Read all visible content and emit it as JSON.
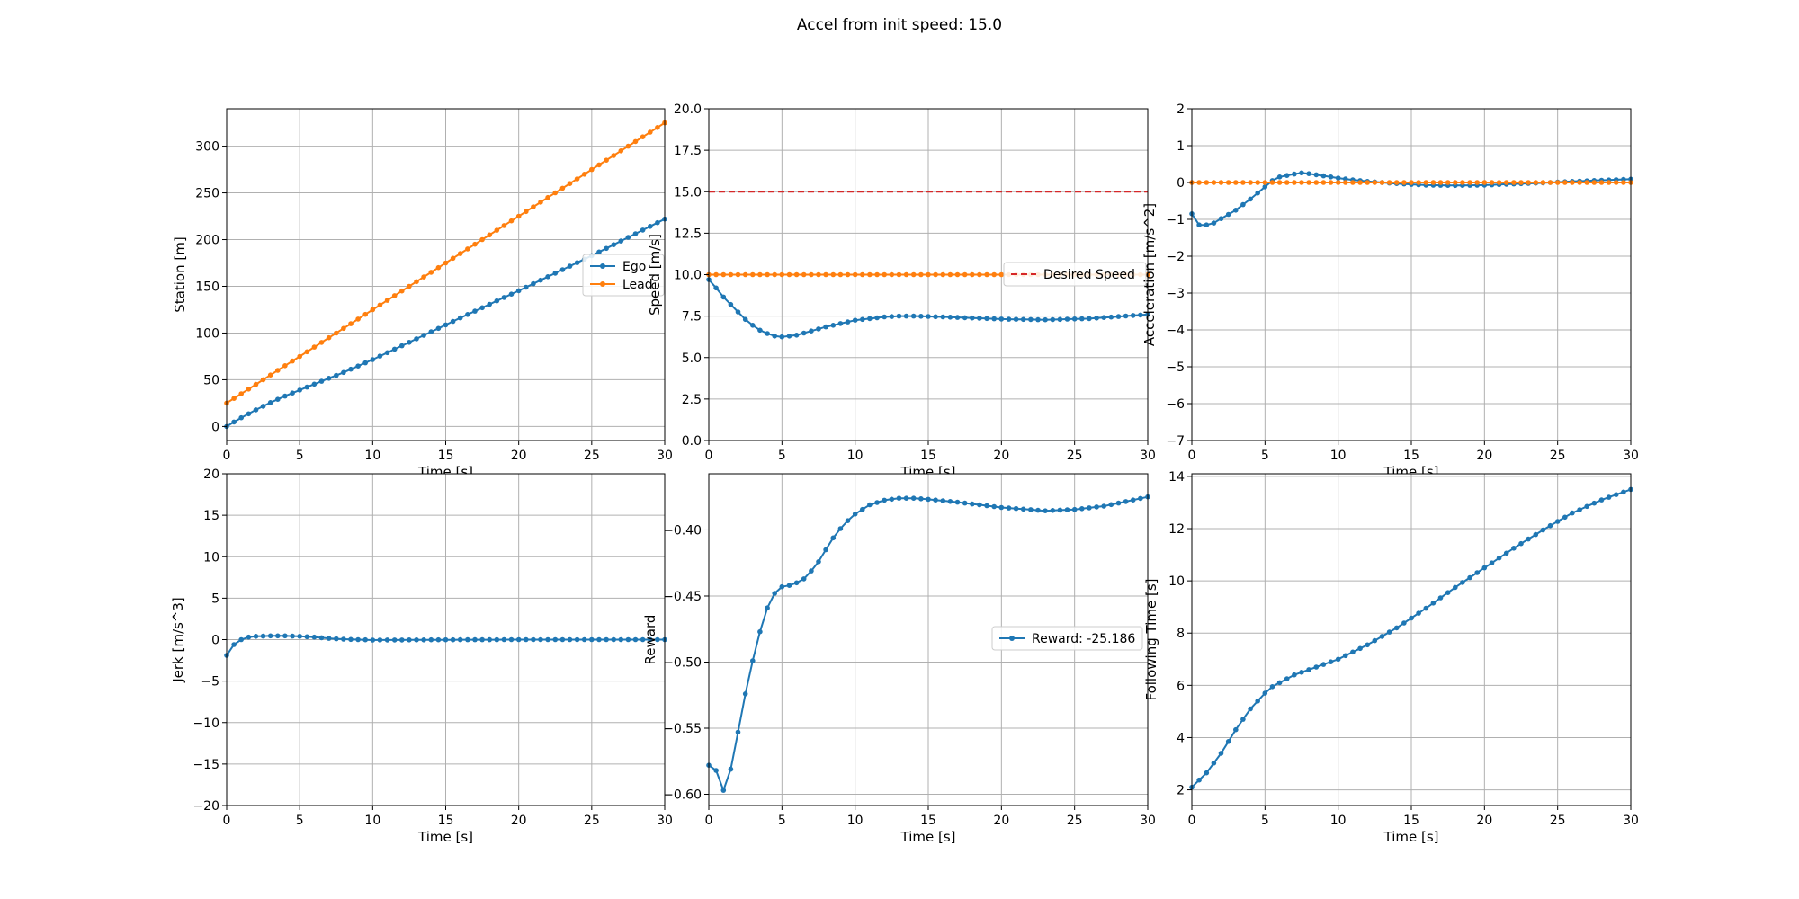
{
  "figure": {
    "suptitle": "Accel from init speed: 15.0"
  },
  "colors": {
    "blue": "#1f77b4",
    "orange": "#ff7f0e",
    "red": "#d62728"
  },
  "chart_data": [
    {
      "id": "station",
      "type": "line",
      "xlabel": "Time [s]",
      "ylabel": "Station [m]",
      "xlim": [
        0,
        30
      ],
      "ylim": [
        -15,
        340
      ],
      "xticks": [
        0,
        5,
        10,
        15,
        20,
        25,
        30
      ],
      "yticks": [
        0,
        50,
        100,
        150,
        200,
        250,
        300
      ],
      "grid": true,
      "legend": "center-right",
      "series": [
        {
          "name": "Ego",
          "color": "blue",
          "marker": true,
          "dashed": false,
          "x": [
            0,
            30
          ],
          "y": [
            0,
            222
          ],
          "points": "x_linear",
          "profile_x": [
            0,
            0.5,
            1,
            2,
            3,
            4,
            5,
            6,
            8,
            10,
            13,
            16,
            20,
            25,
            30
          ],
          "profile_y": [
            0,
            4.8,
            9.3,
            17.8,
            25.6,
            32.5,
            39,
            45.3,
            57.8,
            71.6,
            93.8,
            116.2,
            145.3,
            182.8,
            222
          ]
        },
        {
          "name": "Lead",
          "color": "orange",
          "marker": true,
          "dashed": false,
          "profile_x": [
            0,
            30
          ],
          "profile_y": [
            25,
            325
          ]
        }
      ]
    },
    {
      "id": "speed",
      "type": "line",
      "xlabel": "Time [s]",
      "ylabel": "Speed [m/s]",
      "xlim": [
        0,
        30
      ],
      "ylim": [
        0,
        20
      ],
      "xticks": [
        0,
        5,
        10,
        15,
        20,
        25,
        30
      ],
      "yticks": [
        0.0,
        2.5,
        5.0,
        7.5,
        10.0,
        12.5,
        15.0,
        17.5,
        20.0
      ],
      "ytick_labels": [
        "0.0",
        "2.5",
        "5.0",
        "7.5",
        "10.0",
        "12.5",
        "15.0",
        "17.5",
        "20.0"
      ],
      "grid": true,
      "legend": "center-right",
      "series": [
        {
          "name": "",
          "color": "blue",
          "marker": true,
          "dashed": false,
          "profile_x": [
            0,
            0.5,
            1,
            1.5,
            2,
            2.5,
            3,
            3.5,
            4,
            4.5,
            5,
            6,
            7,
            8,
            9,
            10,
            11,
            12,
            13,
            14,
            15,
            17,
            20,
            23,
            26,
            30
          ],
          "profile_y": [
            9.7,
            9.2,
            8.65,
            8.2,
            7.75,
            7.3,
            6.95,
            6.65,
            6.45,
            6.3,
            6.25,
            6.35,
            6.6,
            6.85,
            7.05,
            7.25,
            7.35,
            7.45,
            7.5,
            7.5,
            7.48,
            7.42,
            7.32,
            7.28,
            7.35,
            7.6
          ]
        },
        {
          "name": "",
          "color": "orange",
          "marker": true,
          "dashed": false,
          "profile_x": [
            0,
            30
          ],
          "profile_y": [
            10,
            10
          ]
        },
        {
          "name": "Desired Speed",
          "color": "red",
          "marker": false,
          "dashed": true,
          "profile_x": [
            0,
            30
          ],
          "profile_y": [
            15,
            15
          ]
        }
      ]
    },
    {
      "id": "accel",
      "type": "line",
      "xlabel": "Time [s]",
      "ylabel": "Acceleration [m/s^2]",
      "xlim": [
        0,
        30
      ],
      "ylim": [
        -7,
        2
      ],
      "xticks": [
        0,
        5,
        10,
        15,
        20,
        25,
        30
      ],
      "yticks": [
        -7,
        -6,
        -5,
        -4,
        -3,
        -2,
        -1,
        0,
        1,
        2
      ],
      "ytick_labels": [
        "−7",
        "−6",
        "−5",
        "−4",
        "−3",
        "−2",
        "−1",
        "0",
        "1",
        "2"
      ],
      "grid": true,
      "legend": "none",
      "series": [
        {
          "name": "",
          "color": "blue",
          "marker": true,
          "dashed": false,
          "profile_x": [
            0,
            0.5,
            1,
            1.5,
            2,
            3,
            4,
            5,
            5.5,
            6,
            7,
            7.5,
            8,
            9,
            10,
            11,
            12,
            14,
            16,
            18,
            20,
            22,
            24,
            26,
            28,
            30
          ],
          "profile_y": [
            -0.85,
            -1.15,
            -1.15,
            -1.1,
            -0.98,
            -0.75,
            -0.45,
            -0.12,
            0.05,
            0.15,
            0.23,
            0.26,
            0.24,
            0.18,
            0.12,
            0.07,
            0.03,
            -0.03,
            -0.07,
            -0.08,
            -0.07,
            -0.04,
            -0.01,
            0.03,
            0.06,
            0.09
          ]
        },
        {
          "name": "",
          "color": "orange",
          "marker": true,
          "dashed": false,
          "profile_x": [
            0,
            30
          ],
          "profile_y": [
            0,
            0
          ]
        }
      ]
    },
    {
      "id": "jerk",
      "type": "line",
      "xlabel": "Time [s]",
      "ylabel": "Jerk [m/s^3]",
      "xlim": [
        0,
        30
      ],
      "ylim": [
        -20,
        20
      ],
      "xticks": [
        0,
        5,
        10,
        15,
        20,
        25,
        30
      ],
      "yticks": [
        -20,
        -15,
        -10,
        -5,
        0,
        5,
        10,
        15,
        20
      ],
      "ytick_labels": [
        "−20",
        "−15",
        "−10",
        "−5",
        "0",
        "5",
        "10",
        "15",
        "20"
      ],
      "grid": true,
      "legend": "none",
      "series": [
        {
          "name": "",
          "color": "blue",
          "marker": true,
          "dashed": false,
          "profile_x": [
            0,
            0.5,
            1,
            1.5,
            2,
            3,
            4,
            5,
            6,
            7,
            8,
            10,
            15,
            20,
            25,
            30
          ],
          "profile_y": [
            -1.9,
            -0.6,
            0,
            0.3,
            0.4,
            0.45,
            0.45,
            0.4,
            0.3,
            0.15,
            0.05,
            -0.05,
            -0.02,
            0,
            0,
            0
          ]
        }
      ]
    },
    {
      "id": "reward",
      "type": "line",
      "xlabel": "Time [s]",
      "ylabel": "Reward",
      "xlim": [
        0,
        30
      ],
      "ylim": [
        -0.6085,
        -0.3575
      ],
      "xticks": [
        0,
        5,
        10,
        15,
        20,
        25,
        30
      ],
      "yticks": [
        -0.6,
        -0.55,
        -0.5,
        -0.45,
        -0.4
      ],
      "ytick_labels": [
        "−0.60",
        "−0.55",
        "−0.50",
        "−0.45",
        "−0.40"
      ],
      "grid": true,
      "legend": "center-right",
      "series": [
        {
          "name": "Reward: -25.186",
          "color": "blue",
          "marker": true,
          "dashed": false,
          "profile_x": [
            0,
            0.5,
            1,
            1.5,
            2,
            2.5,
            3,
            3.5,
            4,
            4.5,
            5,
            5.5,
            6,
            6.5,
            7,
            7.5,
            8,
            8.5,
            9,
            9.5,
            10,
            11,
            12,
            13,
            14,
            15,
            17,
            20,
            23,
            25,
            27,
            30
          ],
          "profile_y": [
            -0.578,
            -0.582,
            -0.597,
            -0.581,
            -0.553,
            -0.524,
            -0.499,
            -0.477,
            -0.459,
            -0.448,
            -0.443,
            -0.442,
            -0.44,
            -0.437,
            -0.431,
            -0.424,
            -0.415,
            -0.406,
            -0.399,
            -0.393,
            -0.388,
            -0.381,
            -0.3775,
            -0.376,
            -0.376,
            -0.3768,
            -0.379,
            -0.383,
            -0.3855,
            -0.3845,
            -0.382,
            -0.375
          ]
        }
      ]
    },
    {
      "id": "following",
      "type": "line",
      "xlabel": "Time [s]",
      "ylabel": "Following Time [s]",
      "xlim": [
        0,
        30
      ],
      "ylim": [
        1.4,
        14.1
      ],
      "xticks": [
        0,
        5,
        10,
        15,
        20,
        25,
        30
      ],
      "yticks": [
        2,
        4,
        6,
        8,
        10,
        12,
        14
      ],
      "grid": true,
      "legend": "none",
      "series": [
        {
          "name": "",
          "color": "blue",
          "marker": true,
          "dashed": false,
          "profile_x": [
            0,
            1,
            2,
            3,
            4,
            5,
            5.5,
            6,
            7,
            8,
            10,
            12,
            14,
            16,
            18,
            20,
            22,
            24,
            26,
            28,
            30
          ],
          "profile_y": [
            2.1,
            2.65,
            3.4,
            4.3,
            5.1,
            5.7,
            5.95,
            6.1,
            6.4,
            6.6,
            7.0,
            7.55,
            8.2,
            8.95,
            9.75,
            10.5,
            11.25,
            11.95,
            12.6,
            13.1,
            13.5
          ]
        }
      ]
    }
  ]
}
